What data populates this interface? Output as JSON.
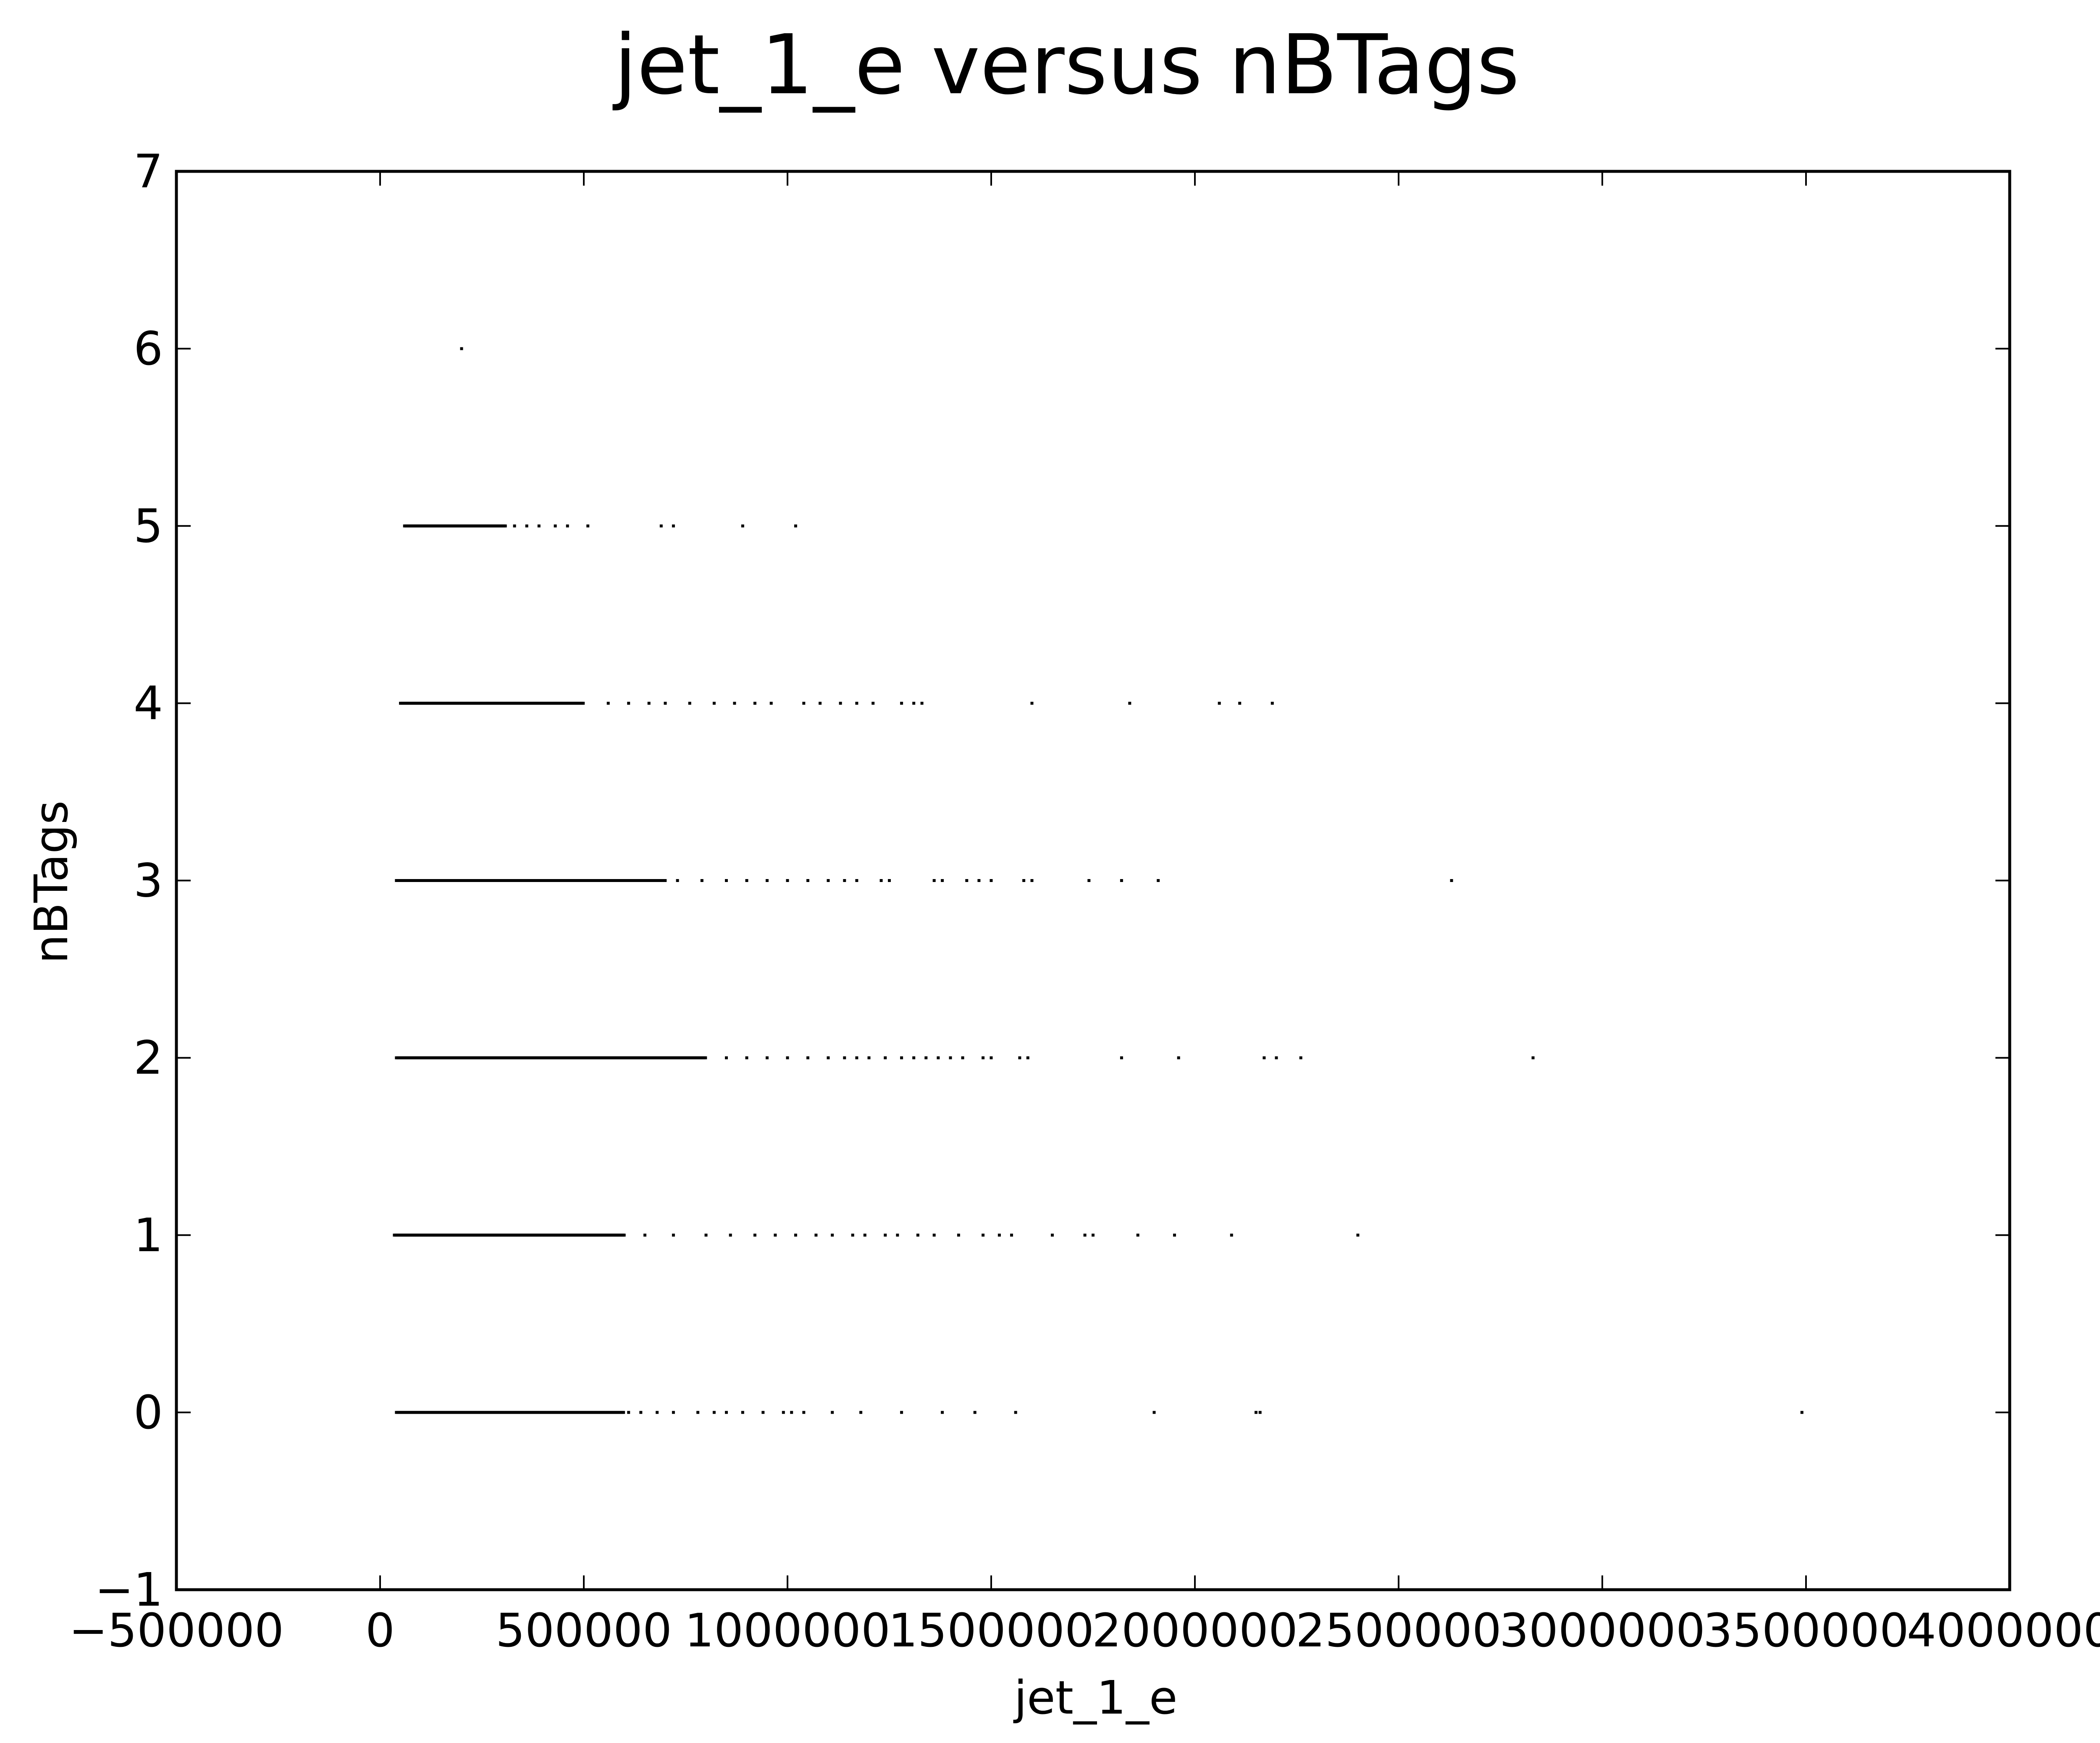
{
  "chart_data": {
    "type": "scatter",
    "title": "jet_1_e versus nBTags",
    "xlabel": "jet_1_e",
    "ylabel": "nBTags",
    "xlim": [
      -500000,
      4000000
    ],
    "ylim": [
      -1,
      7
    ],
    "grid": false,
    "legend": "none",
    "marker_color": "#000000",
    "xticks": [
      -500000,
      0,
      500000,
      1000000,
      1500000,
      2000000,
      2500000,
      3000000,
      3500000,
      4000000
    ],
    "xtick_labels": [
      "−500000",
      "0",
      "500000",
      "1000000",
      "1500000",
      "2000000",
      "2500000",
      "3000000",
      "3500000",
      "4000000"
    ],
    "yticks": [
      -1,
      0,
      1,
      2,
      3,
      4,
      5,
      6,
      7
    ],
    "ytick_labels": [
      "−1",
      "0",
      "1",
      "2",
      "3",
      "4",
      "5",
      "6",
      "7"
    ],
    "bands": [
      {
        "y": 0,
        "dense_range": [
          40000,
          600000
        ]
      },
      {
        "y": 1,
        "dense_range": [
          35000,
          600000
        ]
      },
      {
        "y": 2,
        "dense_range": [
          40000,
          800000
        ]
      },
      {
        "y": 3,
        "dense_range": [
          40000,
          700000
        ]
      },
      {
        "y": 4,
        "dense_range": [
          50000,
          500000
        ]
      },
      {
        "y": 5,
        "dense_range": [
          60000,
          310000
        ]
      }
    ],
    "points": [
      [
        200000,
        6
      ],
      [
        330000,
        5
      ],
      [
        360000,
        5
      ],
      [
        390000,
        5
      ],
      [
        430000,
        5
      ],
      [
        460000,
        5
      ],
      [
        510000,
        5
      ],
      [
        690000,
        5
      ],
      [
        720000,
        5
      ],
      [
        890000,
        5
      ],
      [
        1020000,
        5
      ],
      [
        560000,
        4
      ],
      [
        610000,
        4
      ],
      [
        660000,
        4
      ],
      [
        700000,
        4
      ],
      [
        760000,
        4
      ],
      [
        820000,
        4
      ],
      [
        870000,
        4
      ],
      [
        920000,
        4
      ],
      [
        960000,
        4
      ],
      [
        1040000,
        4
      ],
      [
        1080000,
        4
      ],
      [
        1130000,
        4
      ],
      [
        1170000,
        4
      ],
      [
        1210000,
        4
      ],
      [
        1280000,
        4
      ],
      [
        1310000,
        4
      ],
      [
        1330000,
        4
      ],
      [
        1600000,
        4
      ],
      [
        1840000,
        4
      ],
      [
        2060000,
        4
      ],
      [
        2110000,
        4
      ],
      [
        2190000,
        4
      ],
      [
        730000,
        3
      ],
      [
        790000,
        3
      ],
      [
        850000,
        3
      ],
      [
        900000,
        3
      ],
      [
        950000,
        3
      ],
      [
        1000000,
        3
      ],
      [
        1050000,
        3
      ],
      [
        1100000,
        3
      ],
      [
        1140000,
        3
      ],
      [
        1170000,
        3
      ],
      [
        1230000,
        3
      ],
      [
        1250000,
        3
      ],
      [
        1360000,
        3
      ],
      [
        1380000,
        3
      ],
      [
        1440000,
        3
      ],
      [
        1470000,
        3
      ],
      [
        1500000,
        3
      ],
      [
        1580000,
        3
      ],
      [
        1600000,
        3
      ],
      [
        1740000,
        3
      ],
      [
        1820000,
        3
      ],
      [
        1910000,
        3
      ],
      [
        2630000,
        3
      ],
      [
        850000,
        2
      ],
      [
        900000,
        2
      ],
      [
        950000,
        2
      ],
      [
        1000000,
        2
      ],
      [
        1050000,
        2
      ],
      [
        1100000,
        2
      ],
      [
        1140000,
        2
      ],
      [
        1170000,
        2
      ],
      [
        1200000,
        2
      ],
      [
        1240000,
        2
      ],
      [
        1280000,
        2
      ],
      [
        1310000,
        2
      ],
      [
        1340000,
        2
      ],
      [
        1370000,
        2
      ],
      [
        1400000,
        2
      ],
      [
        1430000,
        2
      ],
      [
        1480000,
        2
      ],
      [
        1500000,
        2
      ],
      [
        1570000,
        2
      ],
      [
        1590000,
        2
      ],
      [
        1820000,
        2
      ],
      [
        1960000,
        2
      ],
      [
        2170000,
        2
      ],
      [
        2200000,
        2
      ],
      [
        2260000,
        2
      ],
      [
        2830000,
        2
      ],
      [
        650000,
        1
      ],
      [
        720000,
        1
      ],
      [
        800000,
        1
      ],
      [
        860000,
        1
      ],
      [
        920000,
        1
      ],
      [
        970000,
        1
      ],
      [
        1020000,
        1
      ],
      [
        1070000,
        1
      ],
      [
        1110000,
        1
      ],
      [
        1160000,
        1
      ],
      [
        1190000,
        1
      ],
      [
        1240000,
        1
      ],
      [
        1270000,
        1
      ],
      [
        1320000,
        1
      ],
      [
        1360000,
        1
      ],
      [
        1420000,
        1
      ],
      [
        1480000,
        1
      ],
      [
        1520000,
        1
      ],
      [
        1550000,
        1
      ],
      [
        1650000,
        1
      ],
      [
        1730000,
        1
      ],
      [
        1750000,
        1
      ],
      [
        1860000,
        1
      ],
      [
        1950000,
        1
      ],
      [
        2090000,
        1
      ],
      [
        2400000,
        1
      ],
      [
        610000,
        0
      ],
      [
        640000,
        0
      ],
      [
        680000,
        0
      ],
      [
        720000,
        0
      ],
      [
        780000,
        0
      ],
      [
        820000,
        0
      ],
      [
        850000,
        0
      ],
      [
        890000,
        0
      ],
      [
        940000,
        0
      ],
      [
        990000,
        0
      ],
      [
        1010000,
        0
      ],
      [
        1040000,
        0
      ],
      [
        1110000,
        0
      ],
      [
        1180000,
        0
      ],
      [
        1280000,
        0
      ],
      [
        1380000,
        0
      ],
      [
        1460000,
        0
      ],
      [
        1560000,
        0
      ],
      [
        1900000,
        0
      ],
      [
        2150000,
        0
      ],
      [
        2160000,
        0
      ],
      [
        3490000,
        0
      ]
    ]
  }
}
